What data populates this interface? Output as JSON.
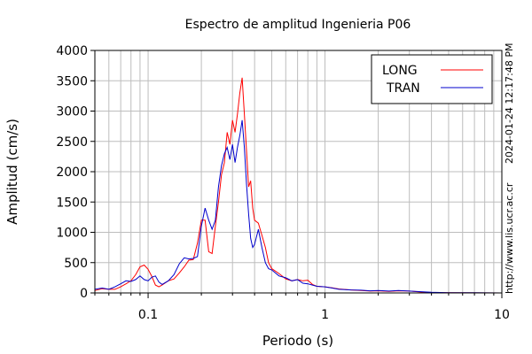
{
  "chart_data": {
    "type": "line",
    "title": "Espectro de amplitud Ingenieria P06",
    "xlabel": "Periodo (s)",
    "ylabel": "Amplitud (cm/s)",
    "xscale": "log",
    "xlim": [
      0.05,
      10
    ],
    "ylim": [
      0,
      4000
    ],
    "x_tick_labels": [
      "0.1",
      "1",
      "10"
    ],
    "y_tick_labels": [
      "0",
      "500",
      "1000",
      "1500",
      "2000",
      "2500",
      "3000",
      "3500",
      "4000"
    ],
    "grid": true,
    "legend_position": "top-right",
    "side_text_timestamp": "2024-01-24 12:17:48 PM",
    "side_text_url": "http://www.lis.ucr.ac.cr",
    "series": [
      {
        "name": "LONG",
        "color": "#ff0000",
        "x": [
          0.05,
          0.055,
          0.06,
          0.065,
          0.07,
          0.075,
          0.08,
          0.085,
          0.09,
          0.095,
          0.1,
          0.105,
          0.11,
          0.115,
          0.12,
          0.13,
          0.14,
          0.15,
          0.16,
          0.17,
          0.18,
          0.19,
          0.2,
          0.21,
          0.22,
          0.23,
          0.24,
          0.25,
          0.26,
          0.27,
          0.28,
          0.29,
          0.3,
          0.31,
          0.32,
          0.33,
          0.34,
          0.35,
          0.36,
          0.37,
          0.38,
          0.39,
          0.4,
          0.42,
          0.44,
          0.46,
          0.48,
          0.5,
          0.55,
          0.6,
          0.65,
          0.7,
          0.75,
          0.8,
          0.85,
          0.9,
          1.0,
          1.1,
          1.2,
          1.4,
          1.6,
          1.8,
          2.0,
          2.3,
          2.6,
          3.0,
          3.5,
          4.0,
          5.0,
          7.0,
          10.0
        ],
        "values": [
          40,
          70,
          60,
          60,
          100,
          150,
          200,
          300,
          430,
          460,
          390,
          270,
          130,
          100,
          130,
          200,
          230,
          330,
          430,
          540,
          550,
          820,
          1200,
          1200,
          680,
          650,
          1100,
          1500,
          1950,
          2150,
          2650,
          2450,
          2850,
          2650,
          2950,
          3300,
          3550,
          2950,
          2350,
          1750,
          1850,
          1400,
          1200,
          1150,
          950,
          750,
          500,
          400,
          320,
          230,
          200,
          220,
          200,
          210,
          140,
          110,
          100,
          85,
          65,
          50,
          40,
          30,
          35,
          25,
          35,
          30,
          15,
          8,
          5,
          2,
          0
        ]
      },
      {
        "name": "TRAN",
        "color": "#0000cc",
        "x": [
          0.05,
          0.055,
          0.06,
          0.065,
          0.07,
          0.075,
          0.08,
          0.085,
          0.09,
          0.095,
          0.1,
          0.105,
          0.11,
          0.115,
          0.12,
          0.13,
          0.14,
          0.15,
          0.16,
          0.17,
          0.18,
          0.19,
          0.2,
          0.21,
          0.22,
          0.23,
          0.24,
          0.25,
          0.26,
          0.27,
          0.28,
          0.29,
          0.3,
          0.31,
          0.32,
          0.33,
          0.34,
          0.35,
          0.36,
          0.37,
          0.38,
          0.39,
          0.4,
          0.42,
          0.44,
          0.46,
          0.48,
          0.5,
          0.55,
          0.6,
          0.65,
          0.7,
          0.75,
          0.8,
          0.85,
          0.9,
          1.0,
          1.1,
          1.2,
          1.4,
          1.6,
          1.8,
          2.0,
          2.3,
          2.6,
          3.0,
          3.5,
          4.0,
          5.0,
          7.0,
          10.0
        ],
        "values": [
          60,
          80,
          60,
          100,
          150,
          200,
          190,
          220,
          280,
          220,
          200,
          260,
          280,
          180,
          140,
          200,
          300,
          480,
          580,
          560,
          570,
          600,
          1100,
          1400,
          1200,
          1050,
          1200,
          1750,
          2100,
          2300,
          2400,
          2200,
          2450,
          2150,
          2400,
          2600,
          2850,
          2400,
          1800,
          1300,
          900,
          750,
          800,
          1050,
          750,
          500,
          400,
          380,
          280,
          250,
          200,
          220,
          160,
          150,
          130,
          110,
          100,
          80,
          60,
          50,
          45,
          35,
          40,
          30,
          40,
          30,
          20,
          10,
          5,
          3,
          0
        ]
      }
    ]
  }
}
